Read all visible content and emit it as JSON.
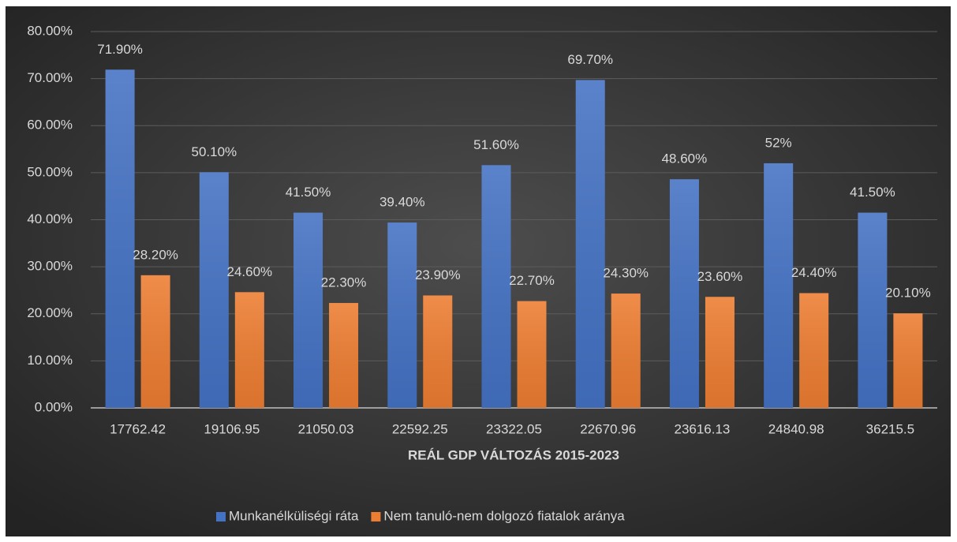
{
  "chart_data": {
    "type": "bar",
    "categories": [
      "17762.42",
      "19106.95",
      "21050.03",
      "22592.25",
      "23322.05",
      "22670.96",
      "23616.13",
      "24840.98",
      "36215.5"
    ],
    "x_label": "REÁL GDP VÁLTOZÁS 2015-2023",
    "series": [
      {
        "name": "Munkanélküliségi ráta",
        "color": "#4472c4",
        "values": [
          71.9,
          50.1,
          41.5,
          39.4,
          51.6,
          69.7,
          48.6,
          52,
          41.5
        ],
        "value_labels": [
          "71.90%",
          "50.10%",
          "41.50%",
          "39.40%",
          "51.60%",
          "69.70%",
          "48.60%",
          "52%",
          "41.50%"
        ]
      },
      {
        "name": "Nem tanuló-nem dolgozó fiatalok aránya",
        "color": "#ed7d31",
        "values": [
          28.2,
          24.6,
          22.3,
          23.9,
          22.7,
          24.3,
          23.6,
          24.4,
          20.1
        ],
        "value_labels": [
          "28.20%",
          "24.60%",
          "22.30%",
          "23.90%",
          "22.70%",
          "24.30%",
          "23.60%",
          "24.40%",
          "20.10%"
        ]
      }
    ],
    "ylim": [
      0,
      80
    ],
    "yticks": [
      {
        "value": 0,
        "label": "0.00%"
      },
      {
        "value": 10,
        "label": "10.00%"
      },
      {
        "value": 20,
        "label": "20.00%"
      },
      {
        "value": 30,
        "label": "30.00%"
      },
      {
        "value": 40,
        "label": "40.00%"
      },
      {
        "value": 50,
        "label": "50.00%"
      },
      {
        "value": 60,
        "label": "60.00%"
      },
      {
        "value": 70,
        "label": "70.00%"
      },
      {
        "value": 80,
        "label": "80.00%"
      }
    ],
    "grid": true,
    "legend": "bottom"
  }
}
